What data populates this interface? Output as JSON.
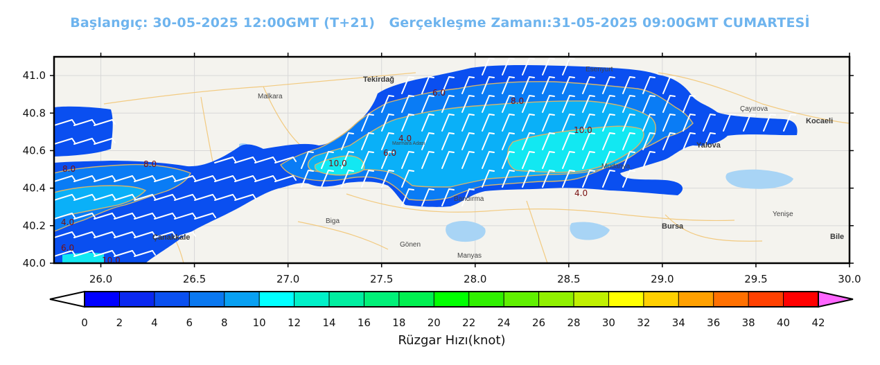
{
  "header": {
    "title": "Başlangıç: 30-05-2025 12:00GMT (T+21)   Gerçekleşme Zamanı:31-05-2025 09:00GMT CUMARTESİ"
  },
  "map": {
    "x_ticks": [
      "26.0",
      "26.5",
      "27.0",
      "27.5",
      "28.0",
      "28.5",
      "29.0",
      "29.5",
      "30.0"
    ],
    "y_ticks": [
      "41.0",
      "40.8",
      "40.6",
      "40.4",
      "40.2",
      "40.0"
    ],
    "xlim": [
      25.75,
      30.0
    ],
    "ylim": [
      40.0,
      41.1
    ],
    "contour_labels": [
      "6.0",
      "8.0",
      "10.0",
      "4.0",
      "6.0",
      "10.0",
      "10.0",
      "4.0",
      "8.0",
      "8.0",
      "4.0",
      "6.0"
    ],
    "place_names": {
      "tekirdag": "Tekirdağ",
      "canakkale": "Çanakkale",
      "bursa": "Bursa",
      "yalova": "Yalova",
      "kocaeli": "Kocaeli",
      "bandirma": "Bandırma",
      "biga": "Biga",
      "gonen": "Gönen",
      "manyas": "Manyas",
      "marmara_adasi": "Marmara Adası",
      "esenyurt": "Esenyurt",
      "malkara": "Malkara",
      "bilecik": "Bile",
      "cayirova": "Çayırova",
      "mudanya": "Mudanya",
      "yenisehir": "Yenişe"
    },
    "colors": {
      "land": "#f4f3ee",
      "wind_4_6": "#0a4ff0",
      "wind_6_8": "#0a7cf5",
      "wind_8_10": "#0ab0f8",
      "wind_10_12": "#12e8f2",
      "contour": "#d8b56a",
      "barb": "#ffffff"
    }
  },
  "colorbar": {
    "ticks": [
      "0",
      "2",
      "4",
      "6",
      "8",
      "10",
      "12",
      "14",
      "16",
      "18",
      "20",
      "22",
      "24",
      "26",
      "28",
      "30",
      "32",
      "34",
      "36",
      "38",
      "40",
      "42"
    ],
    "label": "Rüzgar Hızı(knot)",
    "colors": [
      "#0000ff",
      "#0a28f0",
      "#0a50f0",
      "#0a78f0",
      "#08a0f2",
      "#00ffff",
      "#00f0c8",
      "#00eea0",
      "#00f078",
      "#00f050",
      "#00ff00",
      "#30f000",
      "#60f000",
      "#90f000",
      "#c0f000",
      "#ffff00",
      "#ffd000",
      "#ffa000",
      "#ff7000",
      "#ff4000",
      "#ff0000"
    ],
    "over_color": "#ff66ff"
  }
}
